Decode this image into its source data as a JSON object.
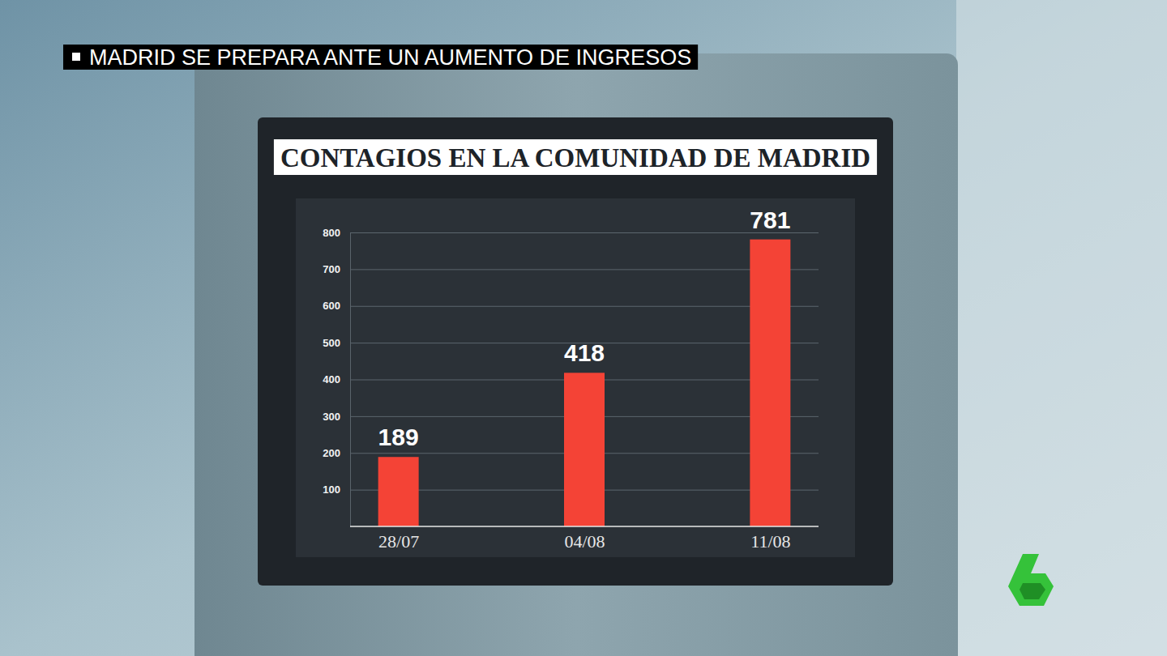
{
  "chart_data": {
    "type": "bar",
    "title": "CONTAGIOS EN LA COMUNIDAD DE MADRID",
    "annotations": [
      "MADRID SE PREPARA ANTE UN AUMENTO DE INGRESOS"
    ],
    "categories": [
      "28/07",
      "04/08",
      "11/08"
    ],
    "values": [
      189,
      418,
      781
    ],
    "color": "#f44336",
    "ylim": [
      0,
      800
    ],
    "yticks": [
      100,
      200,
      300,
      400,
      500,
      600,
      700,
      800
    ],
    "grid": true,
    "data_labels": true
  }
}
